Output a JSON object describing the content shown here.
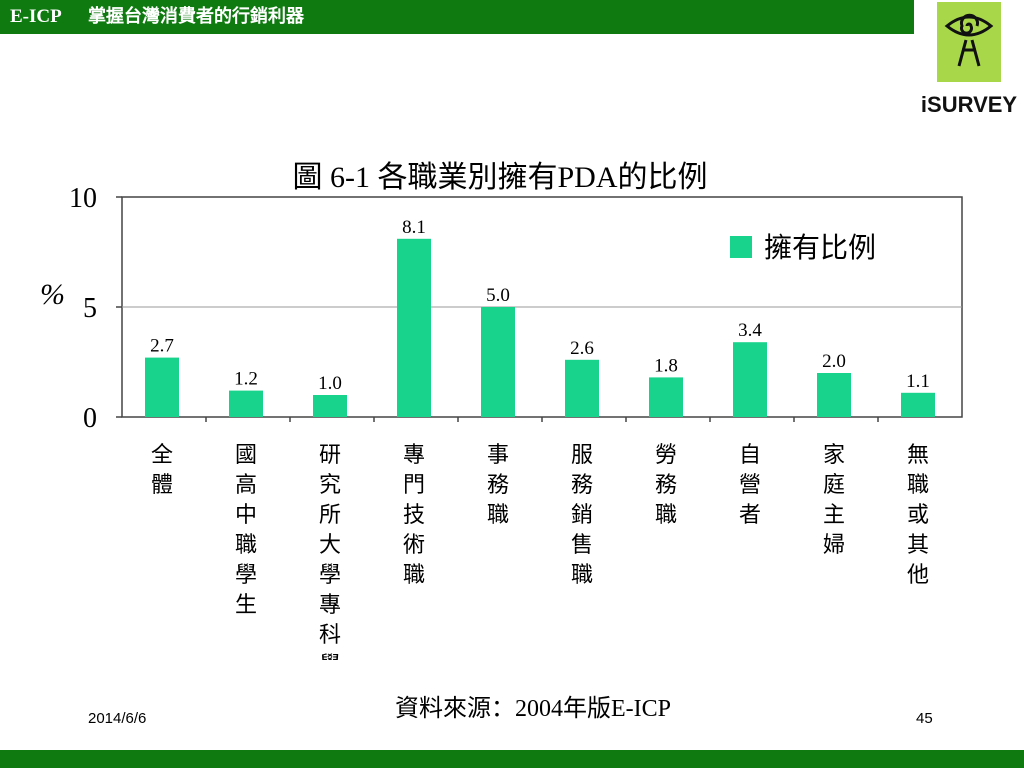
{
  "header": {
    "brand": "E-ICP",
    "slogan": "掌握台灣消費者的行銷利器"
  },
  "logo": {
    "text": "iSURVEY",
    "icon": "spiral-eye-figure-icon"
  },
  "footer": {
    "date": "2014/6/6",
    "page": "45",
    "source": "資料來源：2004年版E-ICP"
  },
  "colors": {
    "header_bg": "#0f7a10",
    "bar": "#18d38b",
    "logo_bg": "#a8d84a"
  },
  "chart_data": {
    "type": "bar",
    "title": "圖 6-1  各職業別擁有PDA的比例",
    "ylabel": "%",
    "ylim": [
      0,
      10
    ],
    "yticks": [
      "0",
      "5",
      "10"
    ],
    "grid": true,
    "legend_position": "top-right",
    "categories": [
      "全體",
      "國高中職學生",
      "研究所大學專科學生",
      "專門技術職",
      "事務職",
      "服務銷售職",
      "勞務職",
      "自營者",
      "家庭主婦",
      "無職或其他"
    ],
    "series": [
      {
        "name": "擁有比例",
        "values": [
          2.7,
          1.2,
          1.0,
          8.1,
          5.0,
          2.6,
          1.8,
          3.4,
          2.0,
          1.1
        ],
        "labels": [
          "2.7",
          "1.2",
          "1.0",
          "8.1",
          "5.0",
          "2.6",
          "1.8",
          "3.4",
          "2.0",
          "1.1"
        ]
      }
    ]
  }
}
